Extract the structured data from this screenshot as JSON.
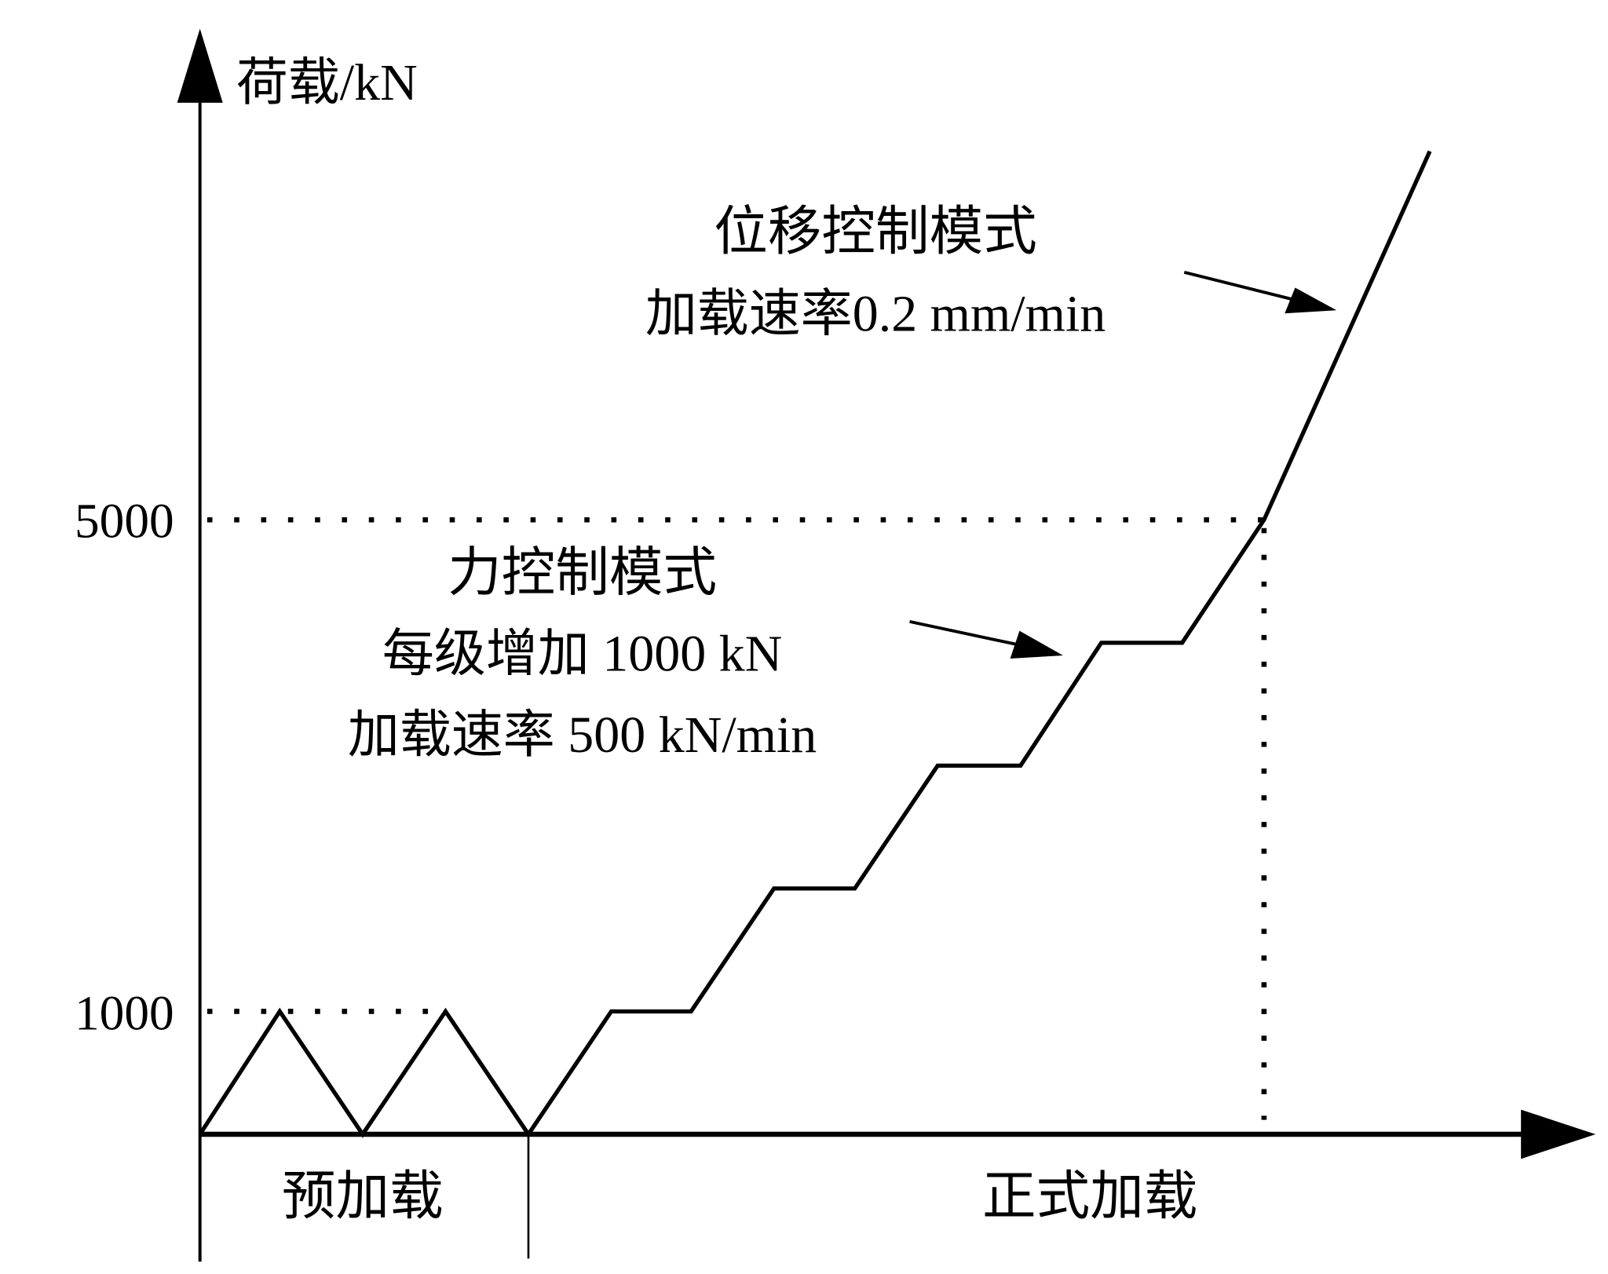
{
  "chart_data": {
    "type": "line",
    "ylabel": "荷载/kN",
    "yticks": [
      "1000",
      "5000"
    ],
    "ytick_values": [
      1000,
      5000
    ],
    "series": [
      {
        "values": [
          0,
          1000,
          0,
          1000,
          0,
          1000,
          1000,
          2000,
          2000,
          3000,
          3000,
          4000,
          4000,
          5000,
          8000
        ]
      }
    ],
    "phases": [
      "预加载",
      "正式加载"
    ],
    "annotations": {
      "displacement_mode": "位移控制模式",
      "displacement_rate": "加载速率0.2 mm/min",
      "force_mode": "力控制模式",
      "force_step": "每级增加 1000 kN",
      "force_rate": "加载速率 500 kN/min"
    },
    "grid": false,
    "line_color": "#000000"
  }
}
